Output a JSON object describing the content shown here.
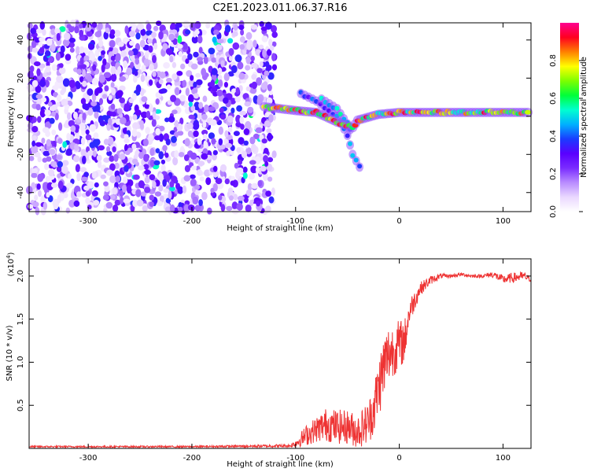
{
  "title": "C2E1.2023.011.06.37.R16",
  "chart_data": [
    {
      "type": "heatmap",
      "xlabel": "Height of straight line (km)",
      "ylabel": "Frequency (Hz)",
      "xlim": [
        -357,
        127
      ],
      "ylim": [
        -50,
        49
      ],
      "xticks": [
        -300,
        -200,
        -100,
        0,
        100
      ],
      "yticks": [
        -40,
        -20,
        0,
        20,
        40
      ],
      "colorbar": {
        "label": "Normalized spectral amplitude",
        "range": [
          0.0,
          1.0
        ],
        "ticks": [
          0.0,
          0.2,
          0.4,
          0.6,
          0.8
        ],
        "tick_labels": [
          "0.0",
          "0.2",
          "0.4",
          "0.6",
          "0.8"
        ],
        "colors": [
          "#ffffff",
          "#ead8ff",
          "#b98cff",
          "#7a2cff",
          "#5a00ff",
          "#1a3cff",
          "#00b0ff",
          "#00ffd0",
          "#00ff3a",
          "#7dff00",
          "#ffff00",
          "#ff8000",
          "#ff0020",
          "#ff0090"
        ]
      },
      "features": [
        {
          "name": "noise region",
          "x_range": [
            -357,
            -120
          ],
          "frequency_range": [
            -50,
            49
          ],
          "amplitude": "0.05-0.35"
        },
        {
          "name": "signal trace",
          "points": [
            [
              -130,
              5
            ],
            [
              -100,
              3
            ],
            [
              -80,
              2
            ],
            [
              -60,
              -3
            ],
            [
              -45,
              -6
            ],
            [
              -40,
              -2
            ],
            [
              -20,
              1
            ],
            [
              0,
              2
            ],
            [
              50,
              2
            ],
            [
              100,
              2
            ],
            [
              127,
              2
            ]
          ],
          "peak_amplitude": 0.95
        },
        {
          "name": "descending branch",
          "points": [
            [
              -95,
              12
            ],
            [
              -80,
              8
            ],
            [
              -60,
              0
            ],
            [
              -50,
              -10
            ],
            [
              -45,
              -20
            ],
            [
              -35,
              -30
            ]
          ],
          "peak_amplitude": 0.5
        },
        {
          "name": "secondary branch",
          "points": [
            [
              -75,
              9
            ],
            [
              -60,
              4
            ],
            [
              -50,
              -4
            ],
            [
              -45,
              -10
            ]
          ],
          "peak_amplitude": 0.6
        }
      ]
    },
    {
      "type": "line",
      "xlabel": "Height of straight line (km)",
      "ylabel": "SNR (10 * v/v)",
      "scale_label": "(x10",
      "scale_exp": "4",
      "scale_close": ")",
      "xlim": [
        -357,
        127
      ],
      "ylim": [
        0,
        2.2
      ],
      "xticks": [
        -300,
        -200,
        -100,
        0,
        100
      ],
      "yticks": [
        0.5,
        1.0,
        1.5,
        2.0
      ],
      "ytick_labels": [
        "0.5",
        "1.0",
        "1.5",
        "2.0"
      ],
      "line_color": "#ee3333",
      "x": [
        -357,
        -300,
        -200,
        -105,
        -100,
        -90,
        -80,
        -70,
        -60,
        -50,
        -40,
        -30,
        -25,
        -20,
        -15,
        -10,
        -5,
        0,
        5,
        10,
        20,
        30,
        40,
        50,
        60,
        70,
        80,
        90,
        100,
        110,
        120,
        127
      ],
      "y": [
        0.02,
        0.02,
        0.02,
        0.03,
        0.06,
        0.15,
        0.22,
        0.28,
        0.25,
        0.25,
        0.2,
        0.3,
        0.45,
        0.7,
        0.95,
        1.1,
        1.15,
        1.2,
        1.25,
        1.6,
        1.85,
        1.95,
        2.0,
        2.0,
        2.02,
        2.0,
        2.0,
        2.02,
        1.96,
        1.98,
        2.0,
        1.96
      ],
      "noise_amplitude": [
        0.01,
        0.01,
        0.01,
        0.02,
        0.05,
        0.12,
        0.15,
        0.2,
        0.2,
        0.2,
        0.2,
        0.25,
        0.3,
        0.35,
        0.4,
        0.35,
        0.3,
        0.3,
        0.25,
        0.15,
        0.08,
        0.05,
        0.03,
        0.02,
        0.02,
        0.02,
        0.02,
        0.04,
        0.05,
        0.06,
        0.05,
        0.03
      ]
    }
  ]
}
